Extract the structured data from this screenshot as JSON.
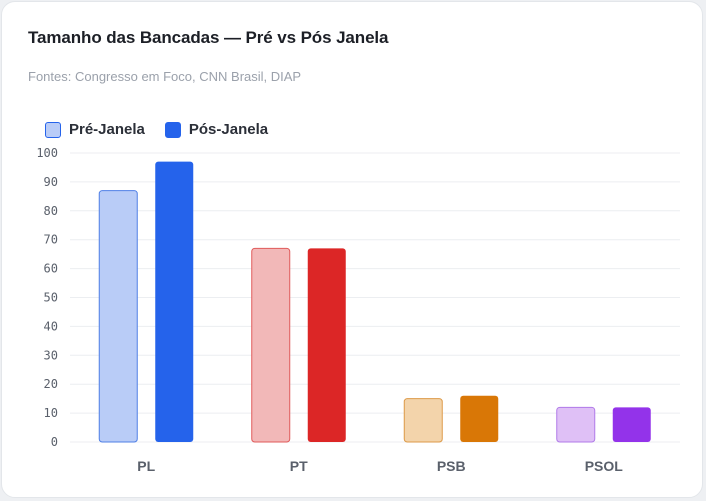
{
  "chart_data": {
    "type": "bar",
    "title": "Tamanho das Bancadas — Pré vs Pós Janela",
    "subtitle": "Fontes: Congresso em Foco, CNN Brasil, DIAP",
    "categories": [
      "PL",
      "PT",
      "PSB",
      "PSOL"
    ],
    "series": [
      {
        "name": "Pré-Janela",
        "values": [
          87,
          67,
          15,
          12
        ],
        "legend_fill": "#b9ccf7",
        "legend_stroke": "#2563eb"
      },
      {
        "name": "Pós-Janela",
        "values": [
          97,
          67,
          16,
          12
        ],
        "legend_fill": "#2563eb",
        "legend_stroke": "#2563eb"
      }
    ],
    "category_colors": [
      {
        "pre_fill": "#b9ccf7",
        "pre_stroke": "#4f7fe6",
        "post_fill": "#2563eb"
      },
      {
        "pre_fill": "#f2b8b8",
        "pre_stroke": "#e05a5a",
        "post_fill": "#dc2626"
      },
      {
        "pre_fill": "#f3d4ab",
        "pre_stroke": "#dd9a48",
        "post_fill": "#d97706"
      },
      {
        "pre_fill": "#dfc0f6",
        "pre_stroke": "#b07ae8",
        "post_fill": "#9333ea"
      }
    ],
    "ylim": [
      0,
      100
    ],
    "yticks": [
      0,
      10,
      20,
      30,
      40,
      50,
      60,
      70,
      80,
      90,
      100
    ],
    "grid": true,
    "legend_position": "top-left",
    "xlabel": "",
    "ylabel": ""
  }
}
